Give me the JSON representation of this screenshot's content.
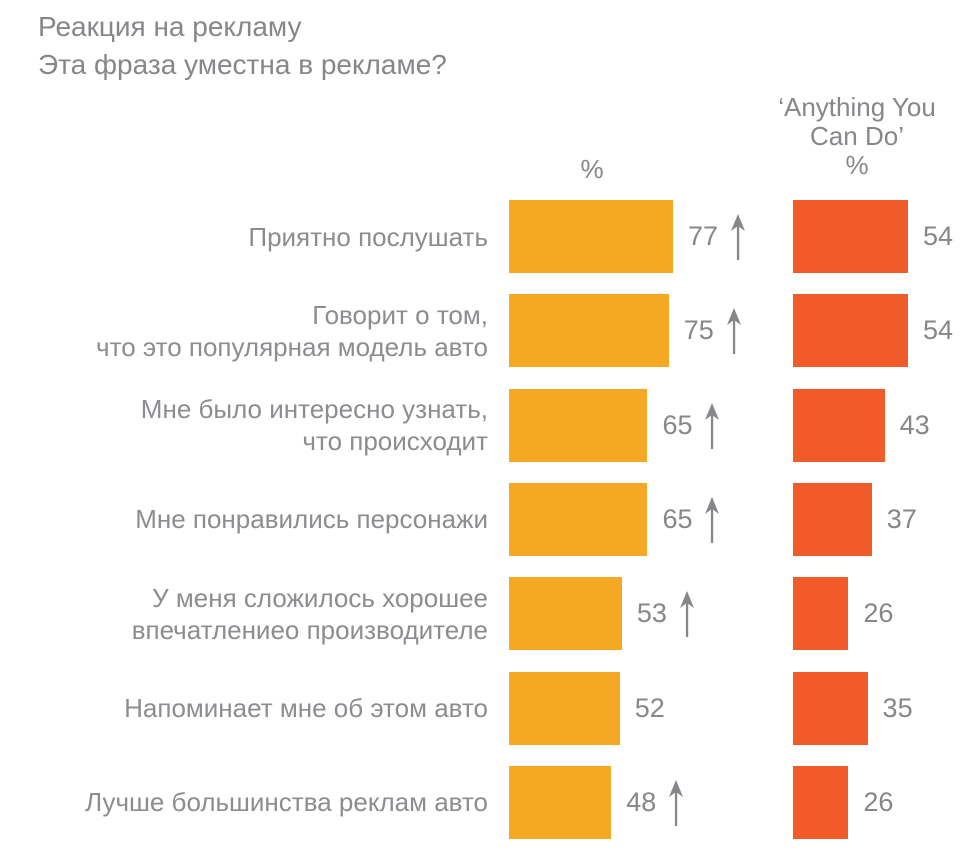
{
  "title": {
    "line1": "Реакция на рекламу",
    "line2": "Эта фраза уместна в рекламе?"
  },
  "headers": {
    "current_unit": "%",
    "comparison_line1": "‘Anything You",
    "comparison_line2": "Can Do’",
    "comparison_unit": "%"
  },
  "colors": {
    "bar_current": "#F5A823",
    "bar_comparison": "#F15B2A",
    "text_gray": "#85878A"
  },
  "chart_data": {
    "type": "bar",
    "orientation": "horizontal",
    "title": "Реакция на рекламу. Эта фраза уместна в рекламе?",
    "unit": "%",
    "xlim": [
      0,
      100
    ],
    "legend_position": "column-headers",
    "grid": false,
    "series": [
      {
        "name": "Эта фраза уместна в рекламе? %",
        "color": "#F5A823"
      },
      {
        "name": "‘Anything You Can Do’ %",
        "color": "#F15B2A"
      }
    ],
    "categories": [
      "Приятно послушать",
      "Говорит о том, что это популярная модель авто",
      "Мне было интересно узнать, что происходит",
      "Мне понравились персонажи",
      "У меня сложилось хорошее впечатлениео производителе",
      "Напоминает мне об этом авто",
      "Лучше большинства реклам авто"
    ],
    "rows": [
      {
        "label_lines": [
          "Приятно послушать"
        ],
        "value": 77,
        "arrow_up": true,
        "comparison": 54
      },
      {
        "label_lines": [
          "Говорит о том,",
          "что это популярная модель авто"
        ],
        "value": 75,
        "arrow_up": true,
        "comparison": 54
      },
      {
        "label_lines": [
          "Мне было интересно узнать,",
          "что происходит"
        ],
        "value": 65,
        "arrow_up": true,
        "comparison": 43
      },
      {
        "label_lines": [
          "Мне понравились персонажи"
        ],
        "value": 65,
        "arrow_up": true,
        "comparison": 37
      },
      {
        "label_lines": [
          "У меня сложилось хорошее",
          "впечатлениео производителе"
        ],
        "value": 53,
        "arrow_up": true,
        "comparison": 26
      },
      {
        "label_lines": [
          "Напоминает мне об этом авто"
        ],
        "value": 52,
        "arrow_up": false,
        "comparison": 35
      },
      {
        "label_lines": [
          "Лучше большинства реклам авто"
        ],
        "value": 48,
        "arrow_up": true,
        "comparison": 26
      }
    ]
  }
}
